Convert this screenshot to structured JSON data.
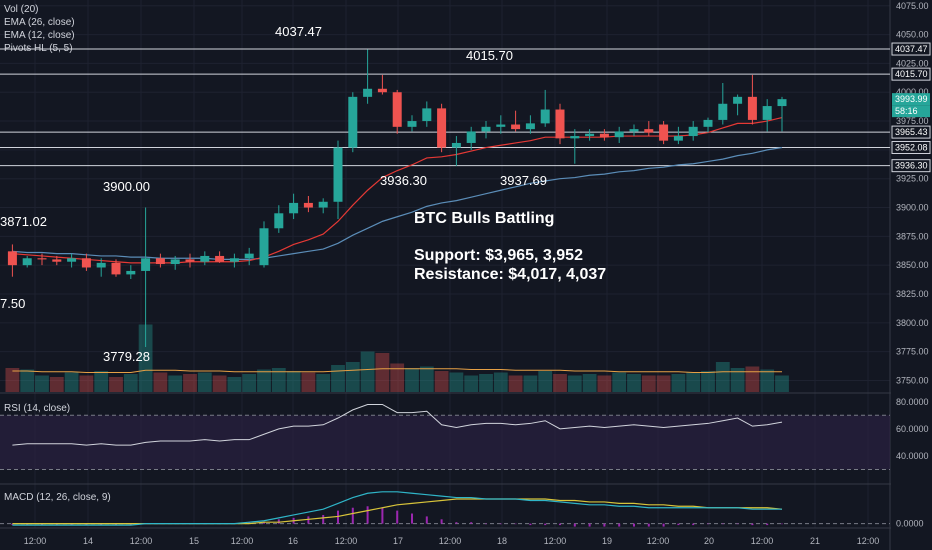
{
  "indicators": {
    "vol": "Vol (20)",
    "ema26": "EMA (26, close)",
    "ema12": "EMA (12, close)",
    "pivots": "Pivots HL (5, 5)",
    "rsi": "RSI (14, close)",
    "macd": "MACD (12, 26, close, 9)"
  },
  "annotation": {
    "title": "BTC Bulls Battling",
    "support": "Support: $3,965, 3,952",
    "resistance": "Resistance: $4,017, 4,037"
  },
  "pivot_labels": {
    "h1": "4037.47",
    "h2": "4015.70",
    "h3": "3900.00",
    "h4": "3871.02",
    "l1": "3936.30",
    "l2": "3937.69",
    "l3": "3779.28",
    "l4": "7.50"
  },
  "price_tags": {
    "current": "3993.99",
    "countdown": "58:16"
  },
  "colors": {
    "background": "#131722",
    "up": "#26a69a",
    "down": "#ef5350",
    "ema12": "#e53935",
    "ema26": "#5b8db8",
    "volume_ma": "#e6a045",
    "rsi_line": "#d1d4dc",
    "rsi_band": "#2a2140",
    "macd_line": "#2fb5c8",
    "signal_line": "#d8c43a",
    "hist": "#9c27b0"
  },
  "chart_data": {
    "type": "candlestick",
    "price_axis": {
      "ticks": [
        4075,
        4050,
        4025,
        4000,
        3975,
        3950,
        3925,
        3900,
        3875,
        3850,
        3825,
        3800,
        3775,
        3750
      ],
      "tick_labels": [
        "4075.00",
        "4050.00",
        "4025.00",
        "4000.00",
        "3975.00",
        "3950.00",
        "3925.00",
        "3900.00",
        "3875.00",
        "3850.00",
        "3825.00",
        "3800.00",
        "3775.00",
        "3750.00"
      ],
      "range": [
        3740,
        4080
      ],
      "levels": [
        4037.47,
        4015.7,
        3965.43,
        3952.08,
        3936.3
      ],
      "level_labels": [
        "4037.47",
        "4015.70",
        "3965.43",
        "3952.08",
        "3936.30"
      ]
    },
    "time_axis": [
      "12:00",
      "14",
      "12:00",
      "15",
      "12:00",
      "16",
      "12:00",
      "17",
      "12:00",
      "18",
      "12:00",
      "19",
      "12:00",
      "20",
      "12:00",
      "21",
      "12:00"
    ],
    "candles": [
      {
        "o": 3862,
        "h": 3868,
        "l": 3840,
        "c": 3850
      },
      {
        "o": 3850,
        "h": 3858,
        "l": 3848,
        "c": 3856
      },
      {
        "o": 3856,
        "h": 3860,
        "l": 3850,
        "c": 3855
      },
      {
        "o": 3855,
        "h": 3858,
        "l": 3850,
        "c": 3853
      },
      {
        "o": 3853,
        "h": 3860,
        "l": 3848,
        "c": 3856
      },
      {
        "o": 3856,
        "h": 3860,
        "l": 3845,
        "c": 3848
      },
      {
        "o": 3848,
        "h": 3856,
        "l": 3840,
        "c": 3852
      },
      {
        "o": 3852,
        "h": 3855,
        "l": 3840,
        "c": 3842
      },
      {
        "o": 3842,
        "h": 3850,
        "l": 3838,
        "c": 3845
      },
      {
        "o": 3845,
        "h": 3900,
        "l": 3779,
        "c": 3856
      },
      {
        "o": 3856,
        "h": 3860,
        "l": 3848,
        "c": 3851
      },
      {
        "o": 3851,
        "h": 3858,
        "l": 3846,
        "c": 3855
      },
      {
        "o": 3855,
        "h": 3860,
        "l": 3848,
        "c": 3853
      },
      {
        "o": 3853,
        "h": 3862,
        "l": 3850,
        "c": 3858
      },
      {
        "o": 3858,
        "h": 3862,
        "l": 3852,
        "c": 3853
      },
      {
        "o": 3853,
        "h": 3860,
        "l": 3848,
        "c": 3856
      },
      {
        "o": 3856,
        "h": 3865,
        "l": 3850,
        "c": 3860
      },
      {
        "o": 3850,
        "h": 3888,
        "l": 3848,
        "c": 3882
      },
      {
        "o": 3882,
        "h": 3902,
        "l": 3878,
        "c": 3895
      },
      {
        "o": 3895,
        "h": 3912,
        "l": 3890,
        "c": 3904
      },
      {
        "o": 3904,
        "h": 3910,
        "l": 3896,
        "c": 3900
      },
      {
        "o": 3900,
        "h": 3908,
        "l": 3895,
        "c": 3905
      },
      {
        "o": 3905,
        "h": 3958,
        "l": 3890,
        "c": 3952
      },
      {
        "o": 3952,
        "h": 4000,
        "l": 3948,
        "c": 3996
      },
      {
        "o": 3996,
        "h": 4037,
        "l": 3990,
        "c": 4003
      },
      {
        "o": 4003,
        "h": 4015,
        "l": 3998,
        "c": 4000
      },
      {
        "o": 4000,
        "h": 4002,
        "l": 3964,
        "c": 3970
      },
      {
        "o": 3970,
        "h": 3980,
        "l": 3966,
        "c": 3975
      },
      {
        "o": 3975,
        "h": 3992,
        "l": 3970,
        "c": 3986
      },
      {
        "o": 3986,
        "h": 3990,
        "l": 3948,
        "c": 3952
      },
      {
        "o": 3952,
        "h": 3962,
        "l": 3936,
        "c": 3956
      },
      {
        "o": 3956,
        "h": 3970,
        "l": 3950,
        "c": 3966
      },
      {
        "o": 3966,
        "h": 3975,
        "l": 3960,
        "c": 3970
      },
      {
        "o": 3970,
        "h": 3980,
        "l": 3964,
        "c": 3972
      },
      {
        "o": 3972,
        "h": 3984,
        "l": 3966,
        "c": 3968
      },
      {
        "o": 3968,
        "h": 3980,
        "l": 3964,
        "c": 3973
      },
      {
        "o": 3973,
        "h": 4002,
        "l": 3970,
        "c": 3985
      },
      {
        "o": 3985,
        "h": 3990,
        "l": 3955,
        "c": 3960
      },
      {
        "o": 3960,
        "h": 3968,
        "l": 3938,
        "c": 3962
      },
      {
        "o": 3962,
        "h": 3968,
        "l": 3958,
        "c": 3964
      },
      {
        "o": 3964,
        "h": 3968,
        "l": 3958,
        "c": 3961
      },
      {
        "o": 3961,
        "h": 3970,
        "l": 3956,
        "c": 3966
      },
      {
        "o": 3966,
        "h": 3972,
        "l": 3962,
        "c": 3968
      },
      {
        "o": 3968,
        "h": 3975,
        "l": 3962,
        "c": 3965
      },
      {
        "o": 3972,
        "h": 3975,
        "l": 3955,
        "c": 3958
      },
      {
        "o": 3958,
        "h": 3970,
        "l": 3955,
        "c": 3962
      },
      {
        "o": 3962,
        "h": 3975,
        "l": 3958,
        "c": 3970
      },
      {
        "o": 3970,
        "h": 3978,
        "l": 3965,
        "c": 3976
      },
      {
        "o": 3976,
        "h": 4008,
        "l": 3972,
        "c": 3990
      },
      {
        "o": 3990,
        "h": 3998,
        "l": 3980,
        "c": 3996
      },
      {
        "o": 3996,
        "h": 4015,
        "l": 3972,
        "c": 3976
      },
      {
        "o": 3976,
        "h": 3994,
        "l": 3966,
        "c": 3988
      },
      {
        "o": 3988,
        "h": 3996,
        "l": 3966,
        "c": 3994
      }
    ],
    "ema12": [
      3860,
      3859,
      3858,
      3857,
      3856,
      3855,
      3854,
      3853,
      3852,
      3852,
      3852,
      3852,
      3853,
      3853,
      3853,
      3853,
      3854,
      3857,
      3862,
      3868,
      3872,
      3877,
      3888,
      3902,
      3915,
      3926,
      3932,
      3937,
      3943,
      3944,
      3946,
      3949,
      3952,
      3954,
      3956,
      3958,
      3961,
      3961,
      3961,
      3961,
      3961,
      3962,
      3962,
      3962,
      3962,
      3962,
      3963,
      3965,
      3969,
      3973,
      3973,
      3975,
      3978
    ],
    "ema26": [
      3862,
      3861,
      3861,
      3860,
      3860,
      3859,
      3858,
      3858,
      3857,
      3857,
      3856,
      3856,
      3856,
      3856,
      3855,
      3855,
      3855,
      3856,
      3858,
      3860,
      3862,
      3864,
      3869,
      3876,
      3882,
      3888,
      3892,
      3896,
      3901,
      3904,
      3906,
      3909,
      3912,
      3915,
      3918,
      3921,
      3923,
      3925,
      3926,
      3928,
      3929,
      3931,
      3932,
      3934,
      3935,
      3937,
      3938,
      3940,
      3942,
      3945,
      3947,
      3950,
      3952
    ],
    "volume": [
      32,
      30,
      22,
      20,
      26,
      22,
      28,
      20,
      24,
      90,
      26,
      22,
      24,
      26,
      22,
      20,
      24,
      30,
      32,
      28,
      26,
      24,
      36,
      40,
      54,
      52,
      38,
      32,
      34,
      28,
      26,
      22,
      24,
      26,
      22,
      22,
      28,
      24,
      22,
      24,
      22,
      26,
      24,
      22,
      22,
      24,
      26,
      28,
      40,
      32,
      34,
      30,
      22
    ],
    "volume_up": [
      false,
      true,
      true,
      false,
      true,
      false,
      true,
      false,
      true,
      true,
      false,
      true,
      false,
      true,
      false,
      true,
      true,
      true,
      true,
      true,
      false,
      true,
      true,
      true,
      true,
      false,
      false,
      true,
      true,
      false,
      true,
      true,
      true,
      true,
      false,
      true,
      true,
      false,
      true,
      true,
      false,
      true,
      true,
      false,
      false,
      true,
      true,
      true,
      true,
      true,
      false,
      true,
      true
    ],
    "volume_ma": [
      28,
      28,
      27,
      27,
      27,
      26,
      26,
      26,
      26,
      29,
      29,
      29,
      28,
      28,
      28,
      27,
      27,
      27,
      27,
      27,
      27,
      27,
      28,
      29,
      30,
      31,
      31,
      31,
      31,
      31,
      31,
      30,
      30,
      30,
      29,
      29,
      29,
      29,
      28,
      28,
      28,
      27,
      27,
      27,
      27,
      27,
      26,
      26,
      27,
      27,
      27,
      27,
      27
    ],
    "rsi": [
      48,
      49,
      49,
      49,
      49,
      48,
      49,
      48,
      48,
      50,
      51,
      51,
      51,
      52,
      51,
      52,
      52,
      56,
      60,
      62,
      62,
      63,
      68,
      74,
      78,
      78,
      72,
      72,
      73,
      63,
      61,
      63,
      64,
      64,
      63,
      64,
      66,
      60,
      61,
      62,
      61,
      62,
      63,
      62,
      61,
      62,
      63,
      64,
      66,
      68,
      62,
      63,
      65
    ],
    "rsi_axis": {
      "ticks": [
        80,
        60,
        40
      ],
      "tick_labels": [
        "80.0000",
        "60.0000",
        "40.0000"
      ],
      "range": [
        20,
        85
      ],
      "bands": [
        70,
        30
      ]
    },
    "macd": [
      -1,
      -1,
      -1,
      -1,
      -1,
      -1,
      -1,
      -1,
      -1,
      0,
      0,
      0,
      0,
      0,
      0,
      0,
      1,
      2,
      4,
      6,
      8,
      10,
      14,
      18,
      21,
      22,
      22,
      21,
      20,
      19,
      18,
      18,
      17,
      17,
      17,
      16,
      16,
      15,
      14,
      13,
      13,
      12,
      12,
      11,
      11,
      11,
      11,
      11,
      11,
      11,
      10,
      10,
      10
    ],
    "macd_signal": [
      0,
      0,
      0,
      0,
      0,
      0,
      0,
      0,
      0,
      0,
      0,
      0,
      0,
      0,
      0,
      0,
      0,
      1,
      1,
      2,
      3,
      4,
      5,
      7,
      9,
      11,
      13,
      14,
      15,
      16,
      17,
      17,
      17,
      17,
      17,
      17,
      17,
      16,
      16,
      15,
      15,
      14,
      14,
      13,
      13,
      12,
      12,
      11,
      11,
      11,
      11,
      11,
      10
    ],
    "macd_axis": {
      "ticks": [
        0
      ],
      "tick_labels": [
        "0.0000"
      ],
      "range": [
        -3,
        26
      ]
    }
  }
}
